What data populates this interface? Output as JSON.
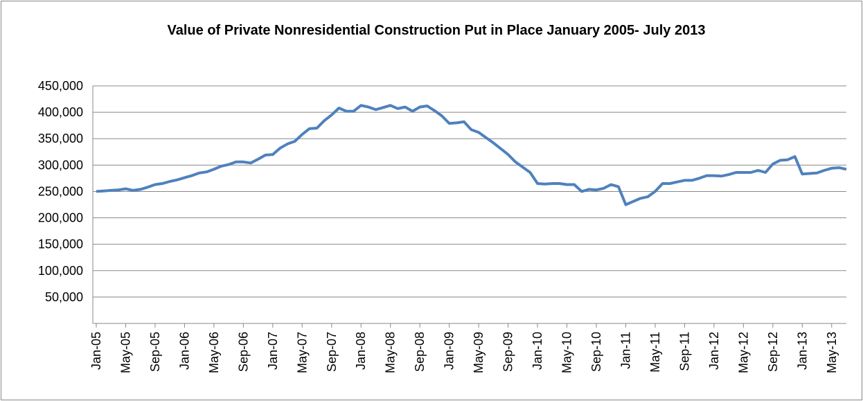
{
  "chart_data": {
    "type": "line",
    "title": "Value of Private Nonresidential Construction Put in Place January 2005- July 2013",
    "categories": [
      "Jan-05",
      null,
      null,
      null,
      "May-05",
      null,
      null,
      null,
      "Sep-05",
      null,
      null,
      null,
      "Jan-06",
      null,
      null,
      null,
      "May-06",
      null,
      null,
      null,
      "Sep-06",
      null,
      null,
      null,
      "Jan-07",
      null,
      null,
      null,
      "May-07",
      null,
      null,
      null,
      "Sep-07",
      null,
      null,
      null,
      "Jan-08",
      null,
      null,
      null,
      "May-08",
      null,
      null,
      null,
      "Sep-08",
      null,
      null,
      null,
      "Jan-09",
      null,
      null,
      null,
      "May-09",
      null,
      null,
      null,
      "Sep-09",
      null,
      null,
      null,
      "Jan-10",
      null,
      null,
      null,
      "May-10",
      null,
      null,
      null,
      "Sep-10",
      null,
      null,
      null,
      "Jan-11",
      null,
      null,
      null,
      "May-11",
      null,
      null,
      null,
      "Sep-11",
      null,
      null,
      null,
      "Jan-12",
      null,
      null,
      null,
      "May-12",
      null,
      null,
      null,
      "Sep-12",
      null,
      null,
      null,
      "Jan-13",
      null,
      null,
      null,
      "May-13",
      null,
      null
    ],
    "series": [
      {
        "color": "#4f81bd",
        "values": [
          250000,
          251000,
          252000,
          253000,
          255000,
          252000,
          254000,
          258000,
          263000,
          265000,
          269000,
          272000,
          276000,
          280000,
          285000,
          287000,
          292000,
          298000,
          301000,
          306000,
          306000,
          304000,
          311000,
          319000,
          320000,
          332000,
          340000,
          345000,
          358000,
          369000,
          370000,
          384000,
          395000,
          408000,
          402000,
          402000,
          413000,
          410000,
          405000,
          409000,
          413000,
          407000,
          410000,
          402000,
          410000,
          412000,
          403000,
          393000,
          379000,
          380000,
          382000,
          367000,
          362000,
          352000,
          342000,
          331000,
          320000,
          306000,
          296000,
          286000,
          265000,
          264000,
          265000,
          265000,
          263000,
          263000,
          250000,
          254000,
          253000,
          256000,
          263000,
          259000,
          225000,
          231000,
          237000,
          240000,
          250000,
          265000,
          265000,
          268000,
          271000,
          271000,
          275000,
          280000,
          280000,
          279000,
          282000,
          286000,
          286000,
          286000,
          290000,
          286000,
          302000,
          309000,
          310000,
          316000,
          283000,
          284000,
          285000,
          290000,
          294000,
          295000,
          292000
        ]
      }
    ],
    "ylim": [
      0,
      450000
    ],
    "yticks": [
      {
        "value": 50000,
        "label": "50,000"
      },
      {
        "value": 100000,
        "label": "100,000"
      },
      {
        "value": 150000,
        "label": "150,000"
      },
      {
        "value": 200000,
        "label": "200,000"
      },
      {
        "value": 250000,
        "label": "250,000"
      },
      {
        "value": 300000,
        "label": "300,000"
      },
      {
        "value": 350000,
        "label": "350,000"
      },
      {
        "value": 400000,
        "label": "400,000"
      },
      {
        "value": 450000,
        "label": "450,000"
      }
    ],
    "grid": true
  }
}
